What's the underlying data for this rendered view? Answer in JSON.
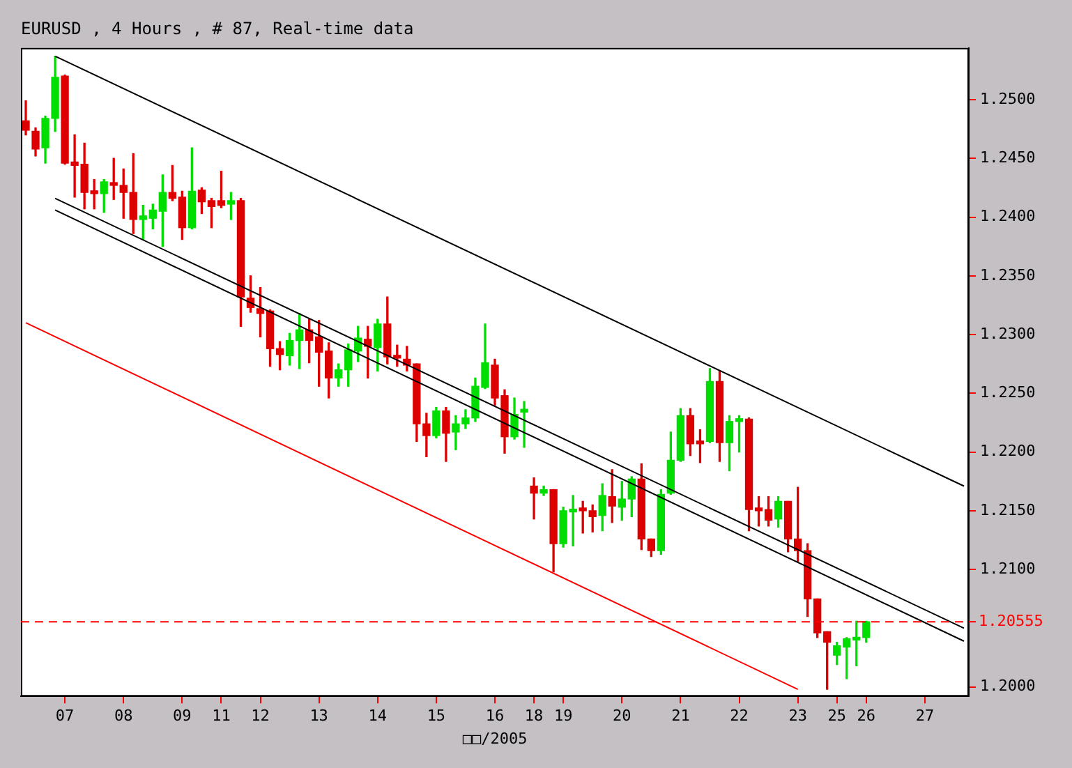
{
  "chart_data": {
    "type": "candlestick",
    "title": "EURUSD , 4 Hours , # 87, Real-time data",
    "xlabel": "□□/2005",
    "categories": [
      null,
      null,
      null,
      null,
      "07",
      null,
      null,
      null,
      null,
      null,
      "08",
      null,
      null,
      null,
      null,
      null,
      "09",
      null,
      null,
      null,
      "11",
      null,
      null,
      null,
      "12",
      null,
      null,
      null,
      null,
      null,
      "13",
      null,
      null,
      null,
      null,
      null,
      "14",
      null,
      null,
      null,
      null,
      null,
      "15",
      null,
      null,
      null,
      null,
      null,
      "16",
      null,
      null,
      null,
      "18",
      null,
      null,
      "19",
      null,
      null,
      null,
      null,
      null,
      "20",
      null,
      null,
      null,
      null,
      null,
      "21",
      null,
      null,
      null,
      null,
      null,
      "22",
      null,
      null,
      null,
      null,
      null,
      "23",
      null,
      null,
      null,
      "25",
      null,
      null,
      "26",
      null,
      null,
      null,
      null,
      null,
      "27",
      null,
      null,
      null,
      null
    ],
    "ohlc": [
      [
        1.2482,
        1.2499,
        1.247,
        1.2474
      ],
      [
        1.2473,
        1.2476,
        1.2452,
        1.2458
      ],
      [
        1.2459,
        1.2486,
        1.2446,
        1.2484
      ],
      [
        1.2484,
        1.2537,
        1.2473,
        1.2519
      ],
      [
        1.252,
        1.2521,
        1.2445,
        1.2446
      ],
      [
        1.2447,
        1.247,
        1.2417,
        1.2444
      ],
      [
        1.2445,
        1.2463,
        1.2407,
        1.2421
      ],
      [
        1.2422,
        1.2432,
        1.2407,
        1.242
      ],
      [
        1.242,
        1.2432,
        1.2404,
        1.243
      ],
      [
        1.2428,
        1.245,
        1.2415,
        1.2427
      ],
      [
        1.2427,
        1.2441,
        1.2399,
        1.2421
      ],
      [
        1.2421,
        1.2454,
        1.2386,
        1.2398
      ],
      [
        1.2398,
        1.241,
        1.2381,
        1.2401
      ],
      [
        1.2399,
        1.2411,
        1.239,
        1.2406
      ],
      [
        1.2405,
        1.2436,
        1.2375,
        1.2421
      ],
      [
        1.2421,
        1.2444,
        1.2414,
        1.2416
      ],
      [
        1.2417,
        1.2422,
        1.2381,
        1.2391
      ],
      [
        1.2391,
        1.2459,
        1.239,
        1.2422
      ],
      [
        1.2423,
        1.2425,
        1.2403,
        1.2413
      ],
      [
        1.2414,
        1.2416,
        1.2391,
        1.2409
      ],
      [
        1.2414,
        1.2439,
        1.2408,
        1.241
      ],
      [
        1.2411,
        1.2421,
        1.2398,
        1.2414
      ],
      [
        1.2414,
        1.2416,
        1.2307,
        1.2332
      ],
      [
        1.2331,
        1.235,
        1.2319,
        1.2323
      ],
      [
        1.2322,
        1.234,
        1.2298,
        1.2318
      ],
      [
        1.232,
        1.2321,
        1.2273,
        1.2288
      ],
      [
        1.2288,
        1.2294,
        1.227,
        1.2283
      ],
      [
        1.2282,
        1.2301,
        1.2274,
        1.2295
      ],
      [
        1.2295,
        1.2318,
        1.2271,
        1.2304
      ],
      [
        1.2304,
        1.2313,
        1.2276,
        1.2295
      ],
      [
        1.2298,
        1.2312,
        1.2256,
        1.2285
      ],
      [
        1.2286,
        1.2293,
        1.2246,
        1.2263
      ],
      [
        1.2263,
        1.2275,
        1.2256,
        1.227
      ],
      [
        1.227,
        1.2292,
        1.2256,
        1.2287
      ],
      [
        1.2286,
        1.2307,
        1.2277,
        1.2297
      ],
      [
        1.2296,
        1.2307,
        1.2263,
        1.229
      ],
      [
        1.2289,
        1.2313,
        1.2269,
        1.2309
      ],
      [
        1.2309,
        1.2332,
        1.2275,
        1.2281
      ],
      [
        1.2281,
        1.2291,
        1.2273,
        1.228
      ],
      [
        1.2279,
        1.229,
        1.2269,
        1.2274
      ],
      [
        1.2275,
        1.2275,
        1.2209,
        1.2224
      ],
      [
        1.2224,
        1.2233,
        1.2196,
        1.2214
      ],
      [
        1.2214,
        1.2238,
        1.2212,
        1.2235
      ],
      [
        1.2235,
        1.2238,
        1.2192,
        1.2216
      ],
      [
        1.2217,
        1.2231,
        1.2202,
        1.2224
      ],
      [
        1.2224,
        1.2236,
        1.222,
        1.2229
      ],
      [
        1.2229,
        1.2263,
        1.2226,
        1.2256
      ],
      [
        1.2255,
        1.2309,
        1.2254,
        1.2276
      ],
      [
        1.2274,
        1.2279,
        1.224,
        1.2246
      ],
      [
        1.2248,
        1.2253,
        1.2199,
        1.2213
      ],
      [
        1.2213,
        1.2246,
        1.2211,
        1.2232
      ],
      [
        1.2234,
        1.2243,
        1.2204,
        1.2236
      ],
      [
        1.2171,
        1.2178,
        1.2143,
        1.2165
      ],
      [
        1.2165,
        1.2171,
        1.2163,
        1.2168
      ],
      [
        1.2168,
        1.2168,
        1.2098,
        1.2122
      ],
      [
        1.2122,
        1.2153,
        1.2119,
        1.215
      ],
      [
        1.2149,
        1.2163,
        1.212,
        1.2151
      ],
      [
        1.2151,
        1.2158,
        1.2131,
        1.215
      ],
      [
        1.215,
        1.2155,
        1.2132,
        1.2145
      ],
      [
        1.2146,
        1.2173,
        1.2133,
        1.2163
      ],
      [
        1.2162,
        1.2185,
        1.214,
        1.2154
      ],
      [
        1.2153,
        1.2175,
        1.2142,
        1.216
      ],
      [
        1.216,
        1.2179,
        1.2145,
        1.2177
      ],
      [
        1.2177,
        1.219,
        1.2117,
        1.2126
      ],
      [
        1.2126,
        1.2126,
        1.2111,
        1.2116
      ],
      [
        1.2116,
        1.2168,
        1.2113,
        1.2164
      ],
      [
        1.2165,
        1.2217,
        1.2164,
        1.2193
      ],
      [
        1.2193,
        1.2237,
        1.2192,
        1.2231
      ],
      [
        1.2231,
        1.2237,
        1.2197,
        1.2207
      ],
      [
        1.2208,
        1.2219,
        1.2191,
        1.2207
      ],
      [
        1.2209,
        1.2271,
        1.2208,
        1.226
      ],
      [
        1.226,
        1.2269,
        1.2192,
        1.2208
      ],
      [
        1.2208,
        1.2231,
        1.2184,
        1.2226
      ],
      [
        1.2226,
        1.2231,
        1.22,
        1.2228
      ],
      [
        1.2228,
        1.2229,
        1.2133,
        1.2151
      ],
      [
        1.2152,
        1.2162,
        1.2137,
        1.215
      ],
      [
        1.2151,
        1.2162,
        1.2137,
        1.2142
      ],
      [
        1.2143,
        1.2162,
        1.2136,
        1.2158
      ],
      [
        1.2158,
        1.2158,
        1.2115,
        1.2126
      ],
      [
        1.2126,
        1.217,
        1.2107,
        1.2116
      ],
      [
        1.2116,
        1.2122,
        1.206,
        1.2075
      ],
      [
        1.2075,
        1.2075,
        1.2042,
        1.2046
      ],
      [
        1.2047,
        1.2047,
        1.1998,
        1.2038
      ],
      [
        1.2027,
        1.2038,
        1.2019,
        1.2035
      ],
      [
        1.2034,
        1.2042,
        1.2007,
        1.2041
      ],
      [
        1.204,
        1.2056,
        1.2018,
        1.2042
      ],
      [
        1.2042,
        1.2056,
        1.2038,
        1.20555
      ],
      null,
      null,
      null,
      null,
      null,
      null,
      null,
      null,
      null,
      null
    ],
    "colors": [
      "#dd0000",
      "#dd0000",
      "#00dd00",
      "#00dd00",
      "#dd0000",
      "#dd0000",
      "#dd0000",
      "#dd0000",
      "#00dd00",
      "#dd0000",
      "#dd0000",
      "#dd0000",
      "#00dd00",
      "#00dd00",
      "#00dd00",
      "#dd0000",
      "#dd0000",
      "#00dd00",
      "#dd0000",
      "#dd0000",
      "#dd0000",
      "#00dd00",
      "#dd0000",
      "#dd0000",
      "#dd0000",
      "#dd0000",
      "#dd0000",
      "#00dd00",
      "#00dd00",
      "#dd0000",
      "#dd0000",
      "#dd0000",
      "#00dd00",
      "#00dd00",
      "#00dd00",
      "#dd0000",
      "#00dd00",
      "#dd0000",
      "#dd0000",
      "#dd0000",
      "#dd0000",
      "#dd0000",
      "#00dd00",
      "#dd0000",
      "#00dd00",
      "#00dd00",
      "#00dd00",
      "#00dd00",
      "#dd0000",
      "#dd0000",
      "#00dd00",
      "#00dd00",
      "#dd0000",
      "#00dd00",
      "#dd0000",
      "#00dd00",
      "#00dd00",
      "#dd0000",
      "#dd0000",
      "#00dd00",
      "#dd0000",
      "#00dd00",
      "#00dd00",
      "#dd0000",
      "#dd0000",
      "#00dd00",
      "#00dd00",
      "#00dd00",
      "#dd0000",
      "#dd0000",
      "#00dd00",
      "#dd0000",
      "#00dd00",
      "#00dd00",
      "#dd0000",
      "#dd0000",
      "#dd0000",
      "#00dd00",
      "#dd0000",
      "#dd0000",
      "#dd0000",
      "#dd0000",
      "#dd0000",
      "#00dd00",
      "#00dd00",
      "#00dd00",
      "#00dd00",
      null,
      null,
      null,
      null,
      null,
      null,
      null,
      null,
      null,
      null
    ],
    "series": [
      {
        "type": "line",
        "color": "#000000",
        "values": [
          null,
          null,
          null,
          1.2537,
          null,
          null,
          null,
          null,
          null,
          null,
          null,
          null,
          null,
          null,
          null,
          null,
          null,
          null,
          null,
          null,
          null,
          null,
          null,
          null,
          null,
          null,
          null,
          null,
          null,
          null,
          null,
          null,
          null,
          null,
          null,
          null,
          null,
          null,
          null,
          null,
          null,
          null,
          null,
          null,
          null,
          null,
          null,
          null,
          null,
          null,
          null,
          null,
          null,
          null,
          null,
          null,
          null,
          null,
          null,
          null,
          null,
          null,
          null,
          null,
          null,
          null,
          null,
          null,
          null,
          null,
          null,
          null,
          null,
          null,
          null,
          null,
          null,
          null,
          null,
          null,
          null,
          null,
          null,
          null,
          null,
          null,
          null,
          null,
          null,
          null,
          null,
          null,
          null,
          null,
          null,
          null,
          1.2171
        ]
      },
      {
        "type": "line",
        "color": "#000000",
        "values": [
          null,
          null,
          null,
          1.2416,
          null,
          null,
          null,
          null,
          null,
          null,
          null,
          null,
          null,
          null,
          null,
          null,
          null,
          null,
          null,
          null,
          null,
          null,
          null,
          null,
          null,
          null,
          null,
          null,
          null,
          null,
          null,
          null,
          null,
          null,
          null,
          null,
          null,
          null,
          null,
          null,
          null,
          null,
          null,
          null,
          null,
          null,
          null,
          null,
          null,
          null,
          null,
          null,
          null,
          null,
          null,
          null,
          null,
          null,
          null,
          null,
          null,
          null,
          null,
          null,
          null,
          null,
          null,
          null,
          null,
          null,
          null,
          null,
          null,
          null,
          null,
          null,
          null,
          null,
          null,
          null,
          null,
          null,
          null,
          null,
          null,
          null,
          null,
          null,
          null,
          null,
          null,
          null,
          null,
          null,
          null,
          null,
          1.205
        ]
      },
      {
        "type": "line",
        "color": "#000000",
        "values": [
          null,
          null,
          null,
          1.2406,
          null,
          null,
          null,
          null,
          null,
          null,
          null,
          null,
          null,
          null,
          null,
          null,
          null,
          null,
          null,
          null,
          null,
          null,
          null,
          null,
          null,
          null,
          null,
          null,
          null,
          null,
          null,
          null,
          null,
          null,
          null,
          null,
          null,
          null,
          null,
          null,
          null,
          null,
          null,
          null,
          null,
          null,
          null,
          null,
          null,
          null,
          null,
          null,
          null,
          null,
          null,
          null,
          null,
          null,
          null,
          null,
          null,
          null,
          null,
          null,
          null,
          null,
          null,
          null,
          null,
          null,
          null,
          null,
          null,
          null,
          null,
          null,
          null,
          null,
          null,
          null,
          null,
          null,
          null,
          null,
          null,
          null,
          null,
          null,
          null,
          null,
          null,
          null,
          null,
          null,
          null,
          null,
          1.2039
        ]
      },
      {
        "type": "line",
        "color": "#ff0000",
        "values": [
          1.231,
          null,
          null,
          null,
          null,
          null,
          null,
          null,
          null,
          null,
          null,
          null,
          null,
          null,
          null,
          null,
          null,
          null,
          null,
          null,
          null,
          null,
          null,
          null,
          null,
          null,
          null,
          null,
          null,
          null,
          null,
          null,
          null,
          null,
          null,
          null,
          null,
          null,
          null,
          null,
          null,
          null,
          null,
          null,
          null,
          null,
          null,
          null,
          null,
          null,
          null,
          null,
          null,
          null,
          null,
          null,
          null,
          null,
          null,
          null,
          null,
          null,
          null,
          null,
          null,
          null,
          null,
          null,
          null,
          null,
          null,
          null,
          null,
          null,
          null,
          null,
          null,
          null,
          null,
          1.1998,
          null,
          null,
          null,
          null,
          null,
          null,
          null,
          null,
          null,
          null,
          null,
          null,
          null,
          null,
          null,
          null,
          null
        ]
      }
    ],
    "ylim": [
      1.1992,
      1.2544
    ],
    "yticks": [
      {
        "value": 1.2,
        "label": "1.2000"
      },
      {
        "value": 1.21,
        "label": "1.2100"
      },
      {
        "value": 1.215,
        "label": "1.2150"
      },
      {
        "value": 1.22,
        "label": "1.2200"
      },
      {
        "value": 1.225,
        "label": "1.2250"
      },
      {
        "value": 1.23,
        "label": "1.2300"
      },
      {
        "value": 1.235,
        "label": "1.2350"
      },
      {
        "value": 1.24,
        "label": "1.2400"
      },
      {
        "value": 1.245,
        "label": "1.2450"
      },
      {
        "value": 1.25,
        "label": "1.2500"
      }
    ],
    "ref_lines": [
      {
        "axis": "y",
        "value": 1.20555,
        "label": "1.20555",
        "color": "#ff0000",
        "line_style": "dashed"
      }
    ]
  }
}
